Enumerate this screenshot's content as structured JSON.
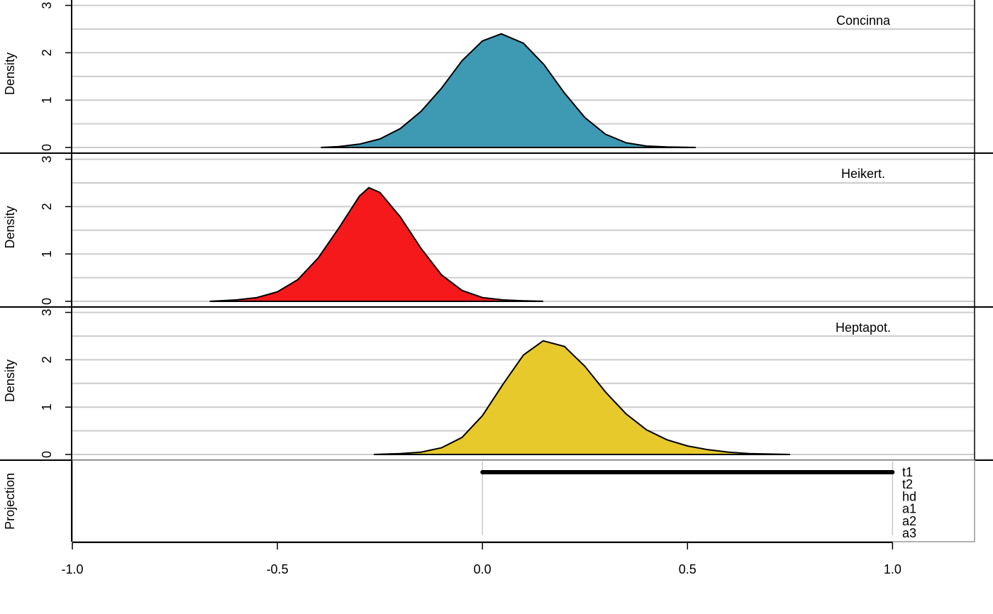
{
  "chart_data": {
    "type": "area",
    "xlim": [
      -1.0,
      1.2
    ],
    "x_ticks": [
      -1.0,
      -0.5,
      0.0,
      0.5,
      1.0
    ],
    "x_tick_labels": [
      "-1.0",
      "-0.5",
      "0.0",
      "0.5",
      "1.0"
    ],
    "grid": true,
    "panels": [
      {
        "label": "Concinna",
        "ylabel": "Density",
        "ylim": [
          0,
          3
        ],
        "y_tick_labels": [
          "0",
          "1",
          "2",
          "3"
        ],
        "fill_color": "#3E99B3",
        "x": [
          -0.394,
          -0.35,
          -0.3,
          -0.25,
          -0.2,
          -0.15,
          -0.1,
          -0.05,
          0.0,
          0.046,
          0.1,
          0.15,
          0.2,
          0.25,
          0.3,
          0.35,
          0.4,
          0.45,
          0.52
        ],
        "y": [
          0.0,
          0.02,
          0.07,
          0.18,
          0.4,
          0.76,
          1.25,
          1.83,
          2.25,
          2.4,
          2.2,
          1.75,
          1.15,
          0.63,
          0.28,
          0.1,
          0.03,
          0.01,
          0.0
        ]
      },
      {
        "label": "Heikert.",
        "ylabel": "Density",
        "ylim": [
          0,
          3
        ],
        "y_tick_labels": [
          "0",
          "1",
          "2",
          "3"
        ],
        "fill_color": "#F5191C",
        "x": [
          -0.665,
          -0.6,
          -0.55,
          -0.5,
          -0.45,
          -0.4,
          -0.35,
          -0.3,
          -0.277,
          -0.25,
          -0.2,
          -0.15,
          -0.1,
          -0.05,
          0.0,
          0.05,
          0.1,
          0.148
        ],
        "y": [
          0.0,
          0.03,
          0.08,
          0.2,
          0.46,
          0.92,
          1.55,
          2.22,
          2.4,
          2.3,
          1.78,
          1.12,
          0.56,
          0.23,
          0.08,
          0.03,
          0.01,
          0.0
        ]
      },
      {
        "label": "Heptapot.",
        "ylabel": "Density",
        "ylim": [
          0,
          3
        ],
        "y_tick_labels": [
          "0",
          "1",
          "2",
          "3"
        ],
        "fill_color": "#E8C92B",
        "x": [
          -0.265,
          -0.2,
          -0.15,
          -0.1,
          -0.05,
          0.0,
          0.05,
          0.1,
          0.148,
          0.2,
          0.25,
          0.3,
          0.35,
          0.4,
          0.45,
          0.5,
          0.55,
          0.6,
          0.65,
          0.75
        ],
        "y": [
          0.0,
          0.02,
          0.05,
          0.14,
          0.36,
          0.82,
          1.48,
          2.1,
          2.4,
          2.28,
          1.86,
          1.32,
          0.86,
          0.52,
          0.31,
          0.18,
          0.1,
          0.05,
          0.02,
          0.0
        ]
      }
    ],
    "projection": {
      "ylabel": "Projection",
      "rows": [
        "t1",
        "t2",
        "hd",
        "a1",
        "a2",
        "a3"
      ],
      "segments": [
        {
          "row": "t1",
          "x0": 0.0,
          "x1": 1.0
        }
      ],
      "reference_lines": [
        0.0,
        1.0
      ]
    }
  }
}
